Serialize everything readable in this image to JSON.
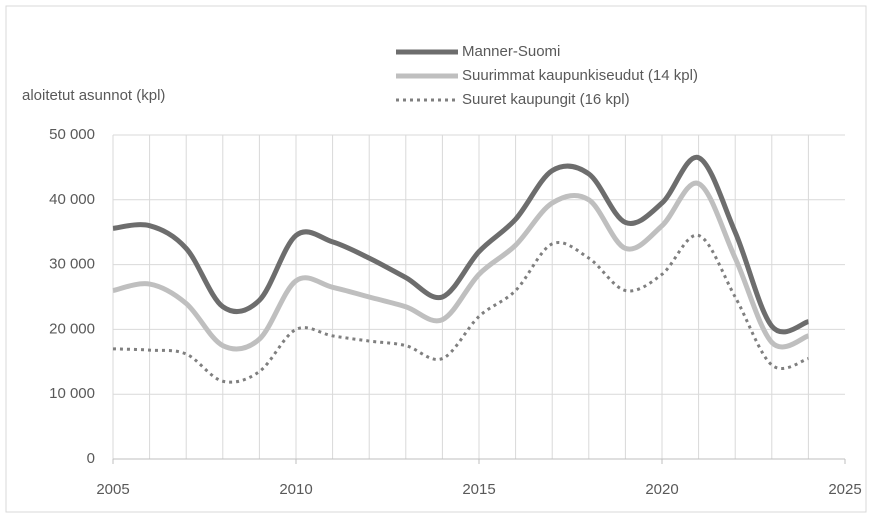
{
  "chart_data": {
    "type": "line",
    "y_label": "aloitetut asunnot (kpl)",
    "x": [
      2005,
      2006,
      2007,
      2008,
      2009,
      2010,
      2011,
      2012,
      2013,
      2014,
      2015,
      2016,
      2017,
      2018,
      2019,
      2020,
      2021,
      2022,
      2023,
      2024
    ],
    "series": [
      {
        "name": "Manner-Suomi",
        "color": "#6d6d6d",
        "style": "solid",
        "values": [
          35600,
          36000,
          32500,
          23500,
          24500,
          34500,
          33500,
          31000,
          28000,
          25000,
          32000,
          37000,
          44500,
          44000,
          36500,
          39500,
          46500,
          35000,
          20500,
          21200
        ]
      },
      {
        "name": "Suurimmat kaupunkiseudut (14 kpl)",
        "color": "#bfbfbf",
        "style": "solid",
        "values": [
          26000,
          27000,
          24000,
          17500,
          18500,
          27500,
          26500,
          25000,
          23500,
          21500,
          28500,
          33000,
          39500,
          40000,
          32500,
          36000,
          42500,
          31000,
          18000,
          19000
        ]
      },
      {
        "name": "Suuret kaupungit (16 kpl)",
        "color": "#7f7f7f",
        "style": "dotted",
        "values": [
          17000,
          16800,
          16200,
          12000,
          13500,
          20000,
          19000,
          18200,
          17500,
          15500,
          22000,
          26000,
          33200,
          31000,
          26000,
          28500,
          34500,
          25000,
          14500,
          15500
        ]
      }
    ],
    "xlim": [
      2005,
      2025
    ],
    "xticks": [
      2005,
      2010,
      2015,
      2020,
      2025
    ],
    "ylim": [
      0,
      50000
    ],
    "yticks": [
      0,
      {
        "value": 10000,
        "label": "10 000"
      },
      {
        "value": 20000,
        "label": "20 000"
      },
      {
        "value": 30000,
        "label": "30 000"
      },
      {
        "value": 40000,
        "label": "40 000"
      },
      {
        "value": 50000,
        "label": "50 000"
      }
    ],
    "grid": true,
    "legend": "top"
  }
}
